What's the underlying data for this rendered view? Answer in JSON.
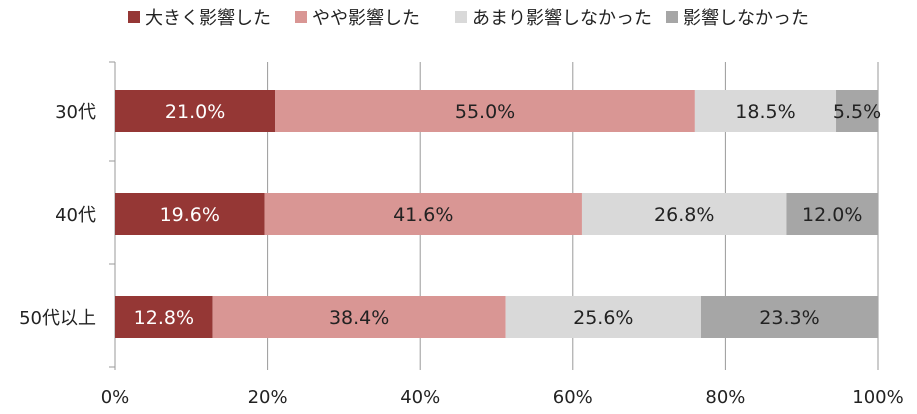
{
  "chart_data": {
    "type": "bar",
    "orientation": "horizontal",
    "stacked": true,
    "categories": [
      "30代",
      "40代",
      "50代以上"
    ],
    "series": [
      {
        "name": "大きく影響した",
        "color": "#953735",
        "label_color": "#ffffff",
        "values": [
          21.0,
          19.6,
          12.8
        ]
      },
      {
        "name": "やや影響した",
        "color": "#d99694",
        "label_color": "#222222",
        "values": [
          55.0,
          41.6,
          38.4
        ]
      },
      {
        "name": "あまり影響しなかった",
        "color": "#d9d9d9",
        "label_color": "#222222",
        "values": [
          18.5,
          26.8,
          25.6
        ]
      },
      {
        "name": "影響しなかった",
        "color": "#a6a6a6",
        "label_color": "#222222",
        "values": [
          5.5,
          12.0,
          23.3
        ]
      }
    ],
    "data_labels": [
      [
        "21.0%",
        "55.0%",
        "18.5%",
        "5.5%"
      ],
      [
        "19.6%",
        "41.6%",
        "26.8%",
        "12.0%"
      ],
      [
        "12.8%",
        "38.4%",
        "25.6%",
        "23.3%"
      ]
    ],
    "xlim": [
      0,
      100
    ],
    "x_ticks": [
      "0%",
      "20%",
      "40%",
      "60%",
      "80%",
      "100%"
    ],
    "grid": true,
    "legend_position": "top"
  }
}
